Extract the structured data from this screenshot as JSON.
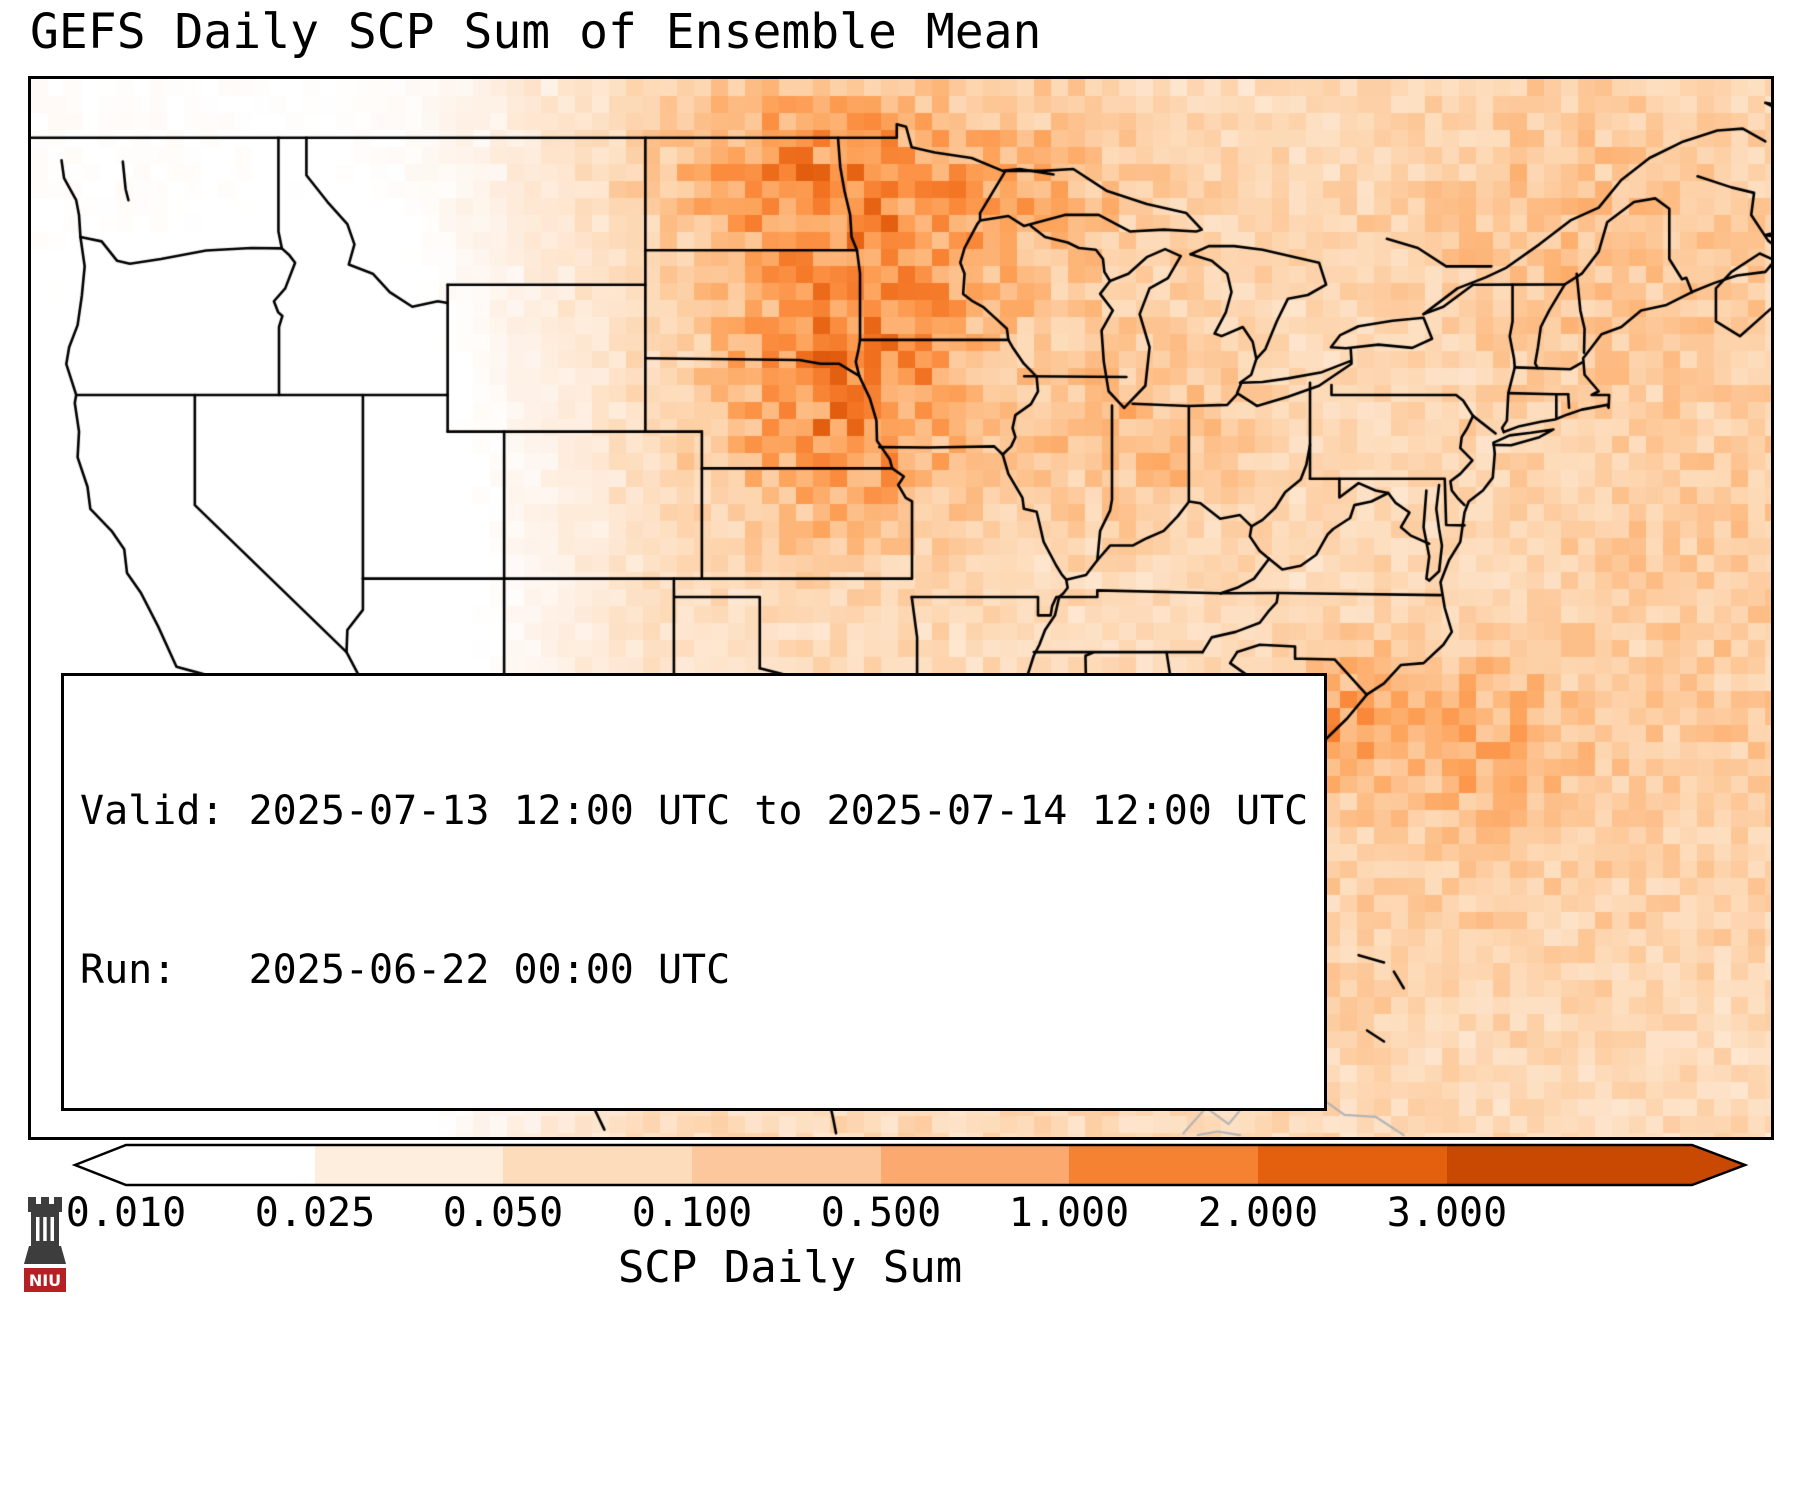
{
  "title": "GEFS Daily SCP Sum of Ensemble Mean",
  "info_box": {
    "valid_line": "Valid: 2025-07-13 12:00 UTC to 2025-07-14 12:00 UTC",
    "run_line": "Run:   2025-06-22 00:00 UTC"
  },
  "colorbar": {
    "label": "SCP Daily Sum",
    "tick_labels": [
      "0.010",
      "0.025",
      "0.050",
      "0.100",
      "0.500",
      "1.000",
      "2.000",
      "3.000"
    ],
    "segment_colors": [
      "#ffffff",
      "#fdeedd",
      "#fcdcbb",
      "#fcc79d",
      "#fba96f",
      "#f58233",
      "#e4600e"
    ],
    "under_color": "#ffffff",
    "over_color": "#c94802"
  },
  "heatmap": {
    "colormap_stops": [
      [
        0.0,
        "#ffffff"
      ],
      [
        0.08,
        "#fef4ec"
      ],
      [
        0.18,
        "#fee8d4"
      ],
      [
        0.28,
        "#fddcbb"
      ],
      [
        0.38,
        "#fdcda1"
      ],
      [
        0.48,
        "#fdb97f"
      ],
      [
        0.58,
        "#fda45c"
      ],
      [
        0.68,
        "#fb8c3e"
      ],
      [
        0.78,
        "#f27322"
      ],
      [
        0.88,
        "#e25d0e"
      ],
      [
        1.0,
        "#cd4a02"
      ]
    ],
    "border_color": "#000000",
    "foreign_border_color": "#b5b5b5"
  },
  "logo": {
    "text": "NIU",
    "red": "#b52025",
    "dark": "#3d3d3d"
  },
  "chart_data": {
    "type": "heatmap",
    "title": "GEFS Daily SCP Sum of Ensemble Mean",
    "colorbar_label": "SCP Daily Sum",
    "colorbar_ticks": [
      0.01,
      0.025,
      0.05,
      0.1,
      0.5,
      1.0,
      2.0,
      3.0
    ],
    "colorbar_extend": "both",
    "valid": "2025-07-13 12:00 UTC to 2025-07-14 12:00 UTC",
    "run": "2025-06-22 00:00 UTC",
    "region": "Continental United States and adjacent areas",
    "notable_features": [
      {
        "area": "Eastern Dakotas / Minnesota / upper Midwest",
        "approx_scp_sum": "0.5-2.0 (maximum)"
      },
      {
        "area": "Central Appalachians (West Virginia / Virginia)",
        "approx_scp_sum": "0.5-1.0"
      },
      {
        "area": "Atlantic waters off the Carolinas",
        "approx_scp_sum": "0.5-1.0"
      },
      {
        "area": "California / Nevada / Great Basin",
        "approx_scp_sum": "< 0.010"
      },
      {
        "area": "Plains, Midwest, Gulf Coast and Southeast",
        "approx_scp_sum": "0.05-0.5"
      }
    ]
  }
}
